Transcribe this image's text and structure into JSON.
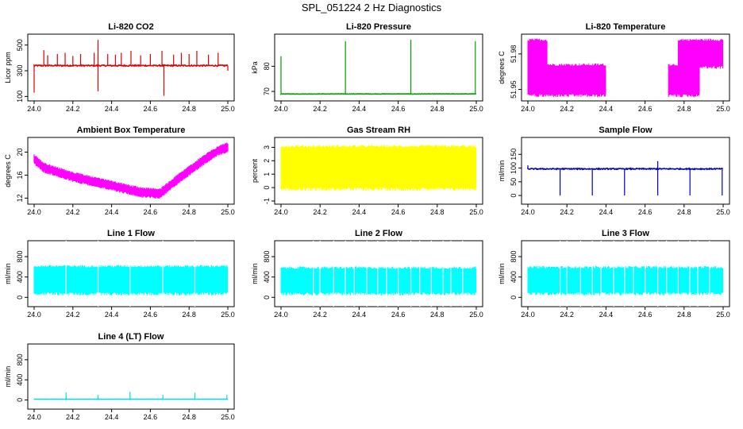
{
  "page_title": "SPL_051224  2 Hz Diagnostics",
  "chart_data": [
    {
      "type": "line",
      "title": "Li-820 CO2",
      "ylabel": "Licor ppm",
      "color": "#e00000",
      "xlim": [
        24.0,
        25.0
      ],
      "ylim": [
        90,
        560
      ],
      "yticks": [
        100,
        300,
        500
      ],
      "xticks": [
        "24.0",
        "24.2",
        "24.4",
        "24.6",
        "24.8",
        "25.0"
      ],
      "series": [
        {
          "base": 340,
          "noise": 10,
          "spikes": [
            {
              "x": 24.05,
              "y": 460
            },
            {
              "x": 24.07,
              "y": 420
            },
            {
              "x": 24.12,
              "y": 430
            },
            {
              "x": 24.16,
              "y": 440
            },
            {
              "x": 24.2,
              "y": 415
            },
            {
              "x": 24.24,
              "y": 430
            },
            {
              "x": 24.31,
              "y": 440
            },
            {
              "x": 24.33,
              "y": 540
            },
            {
              "x": 24.33,
              "y": 140
            },
            {
              "x": 24.38,
              "y": 430
            },
            {
              "x": 24.42,
              "y": 425
            },
            {
              "x": 24.45,
              "y": 440
            },
            {
              "x": 24.5,
              "y": 455
            },
            {
              "x": 24.55,
              "y": 420
            },
            {
              "x": 24.6,
              "y": 430
            },
            {
              "x": 24.66,
              "y": 455
            },
            {
              "x": 24.67,
              "y": 105
            },
            {
              "x": 24.72,
              "y": 425
            },
            {
              "x": 24.76,
              "y": 440
            },
            {
              "x": 24.8,
              "y": 430
            },
            {
              "x": 24.84,
              "y": 455
            },
            {
              "x": 24.9,
              "y": 425
            },
            {
              "x": 24.95,
              "y": 440
            },
            {
              "x": 25.0,
              "y": 300
            },
            {
              "x": 24.0,
              "y": 130
            }
          ]
        }
      ]
    },
    {
      "type": "line",
      "title": "Li-820 Pressure",
      "ylabel": "kPa",
      "color": "#00a000",
      "xlim": [
        24.0,
        25.0
      ],
      "ylim": [
        67.5,
        91.5
      ],
      "yticks": [
        70,
        80
      ],
      "xticks": [
        "24.0",
        "24.2",
        "24.4",
        "24.6",
        "24.8",
        "25.0"
      ],
      "series": [
        {
          "base": 69.0,
          "noise": 0.15,
          "spikes": [
            {
              "x": 24.0,
              "y": 84
            },
            {
              "x": 24.33,
              "y": 90
            },
            {
              "x": 24.665,
              "y": 90.5
            },
            {
              "x": 24.995,
              "y": 90
            }
          ]
        }
      ]
    },
    {
      "type": "area",
      "title": "Li-820 Temperature",
      "ylabel": "degrees C",
      "color": "#ff00ff",
      "xlim": [
        24.0,
        25.0
      ],
      "ylim": [
        51.943,
        51.994
      ],
      "yticks": [
        51.95,
        51.98
      ],
      "xticks": [
        "24.0",
        "24.2",
        "24.4",
        "24.6",
        "24.8",
        "25.0"
      ],
      "bands": [
        {
          "x0": 24.0,
          "x1": 24.1,
          "lo": 51.946,
          "hi": 51.991
        },
        {
          "x0": 24.1,
          "x1": 24.4,
          "lo": 51.946,
          "hi": 51.97
        },
        {
          "x0": 24.72,
          "x1": 24.88,
          "lo": 51.946,
          "hi": 51.97
        },
        {
          "x0": 24.77,
          "x1": 25.0,
          "lo": 51.97,
          "hi": 51.991
        }
      ]
    },
    {
      "type": "line",
      "title": "Ambient Box Temperature",
      "ylabel": "degrees C",
      "color": "#ff00ff",
      "xlim": [
        24.0,
        25.0
      ],
      "ylim": [
        11.5,
        22.0
      ],
      "yticks": [
        12,
        16,
        20
      ],
      "xticks": [
        "24.0",
        "24.2",
        "24.4",
        "24.6",
        "24.8",
        "25.0"
      ],
      "series": [
        {
          "keypoints": [
            [
              24.0,
              18.8
            ],
            [
              24.05,
              17.3
            ],
            [
              24.2,
              15.7
            ],
            [
              24.4,
              14.2
            ],
            [
              24.55,
              13.0
            ],
            [
              24.65,
              12.8
            ],
            [
              24.75,
              15.5
            ],
            [
              24.85,
              18.0
            ],
            [
              24.95,
              20.3
            ],
            [
              25.0,
              20.8
            ]
          ],
          "noise": 1.0
        }
      ]
    },
    {
      "type": "area",
      "title": "Gas Stream RH",
      "ylabel": "percent",
      "color": "#ffff00",
      "xlim": [
        24.0,
        25.0
      ],
      "ylim": [
        -1.0,
        3.5
      ],
      "yticks": [
        -1,
        0,
        1,
        2,
        3
      ],
      "xticks": [
        "24.0",
        "24.2",
        "24.4",
        "24.6",
        "24.8",
        "25.0"
      ],
      "bands": [
        {
          "x0": 24.0,
          "x1": 25.0,
          "lo": 0.0,
          "hi": 3.0
        }
      ]
    },
    {
      "type": "line",
      "title": "Sample Flow",
      "ylabel": "ml/min",
      "color": "#0000c0",
      "xlim": [
        24.0,
        25.0
      ],
      "ylim": [
        -20,
        200
      ],
      "yticks": [
        0,
        50,
        100,
        150
      ],
      "xticks": [
        "24.0",
        "24.2",
        "24.4",
        "24.6",
        "24.8",
        "25.0"
      ],
      "series": [
        {
          "base": 97,
          "noise": 4,
          "spikes": [
            {
              "x": 24.0,
              "y": 110
            },
            {
              "x": 24.165,
              "y": 0
            },
            {
              "x": 24.33,
              "y": 0
            },
            {
              "x": 24.495,
              "y": 0
            },
            {
              "x": 24.665,
              "y": 0
            },
            {
              "x": 24.665,
              "y": 125
            },
            {
              "x": 24.83,
              "y": 0
            },
            {
              "x": 24.995,
              "y": 0
            }
          ]
        }
      ]
    },
    {
      "type": "area",
      "title": "Line 1 Flow",
      "ylabel": "ml/min",
      "color": "#00ffff",
      "xlim": [
        24.0,
        25.0
      ],
      "ylim": [
        -120,
        1050
      ],
      "yticks": [
        0,
        400,
        800
      ],
      "xticks": [
        "24.0",
        "24.2",
        "24.4",
        "24.6",
        "24.8",
        "25.0"
      ],
      "bands": [
        {
          "x0": 24.0,
          "x1": 25.0,
          "lo": 100,
          "hi": 590
        }
      ],
      "gaps": [
        24.165,
        24.33,
        24.495,
        24.665,
        24.83
      ]
    },
    {
      "type": "area",
      "title": "Line 2 Flow",
      "ylabel": "ml/min",
      "color": "#00ffff",
      "xlim": [
        24.0,
        25.0
      ],
      "ylim": [
        -120,
        1050
      ],
      "yticks": [
        0,
        400,
        800
      ],
      "xticks": [
        "24.0",
        "24.2",
        "24.4",
        "24.6",
        "24.8",
        "25.0"
      ],
      "bands": [
        {
          "x0": 24.0,
          "x1": 25.0,
          "lo": 100,
          "hi": 560
        }
      ],
      "gaps": [
        24.165,
        24.2,
        24.27,
        24.33,
        24.375,
        24.44,
        24.495,
        24.54,
        24.6,
        24.665,
        24.71,
        24.77,
        24.83,
        24.87,
        24.93
      ]
    },
    {
      "type": "area",
      "title": "Line 3 Flow",
      "ylabel": "ml/min",
      "color": "#00ffff",
      "xlim": [
        24.0,
        25.0
      ],
      "ylim": [
        -120,
        1050
      ],
      "yticks": [
        0,
        400,
        800
      ],
      "xticks": [
        "24.0",
        "24.2",
        "24.4",
        "24.6",
        "24.8",
        "25.0"
      ],
      "bands": [
        {
          "x0": 24.0,
          "x1": 25.0,
          "lo": 100,
          "hi": 570
        }
      ],
      "gaps": [
        24.165,
        24.2,
        24.27,
        24.33,
        24.375,
        24.44,
        24.495,
        24.54,
        24.6,
        24.665,
        24.71,
        24.77,
        24.83,
        24.87,
        24.93
      ]
    },
    {
      "type": "line",
      "title": "Line 4 (LT) Flow",
      "ylabel": "ml/min",
      "color": "#00e0e0",
      "xlim": [
        24.0,
        25.0
      ],
      "ylim": [
        -120,
        1050
      ],
      "yticks": [
        0,
        400,
        800
      ],
      "xticks": [
        "24.0",
        "24.2",
        "24.4",
        "24.6",
        "24.8",
        "25.0"
      ],
      "series": [
        {
          "base": 15,
          "noise": 3,
          "spikes": [
            {
              "x": 24.165,
              "y": 150
            },
            {
              "x": 24.33,
              "y": 100
            },
            {
              "x": 24.495,
              "y": 160
            },
            {
              "x": 24.665,
              "y": 100
            },
            {
              "x": 24.83,
              "y": 145
            },
            {
              "x": 24.995,
              "y": 100
            }
          ]
        }
      ]
    }
  ]
}
